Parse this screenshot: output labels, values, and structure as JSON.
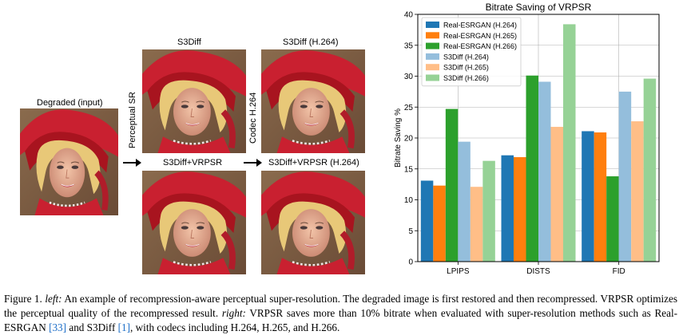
{
  "figure": {
    "left": {
      "degraded_label": "Degraded (input)",
      "s3diff_label": "S3Diff",
      "s3diff_h264_label": "S3Diff (H.264)",
      "perceptual_sr_label": "Perceptual SR",
      "codec_label": "Codec H.264",
      "s3diff_vrpsr_label": "S3Diff+VRPSR",
      "s3diff_vrpsr_h264_label": "S3Diff+VRPSR (H.264)"
    },
    "caption": {
      "prefix": "Figure 1.",
      "left_word": "left:",
      "text1": " An example of recompression-aware perceptual super-resolution. The degraded image is first restored and then recompressed. VRPSR optimizes the perceptual quality of the recompressed result. ",
      "right_word": "right:",
      "text2": " VRPSR saves more than 10% bitrate when evaluated with super-resolution methods such as Real-ESRGAN ",
      "ref1": "[33]",
      "text3": " and S3Diff ",
      "ref2": "[1]",
      "text4": ", with codecs including H.264, H.265, and H.266."
    }
  },
  "chart_data": {
    "type": "bar",
    "title": "Bitrate Saving of VRPSR",
    "xlabel": "",
    "ylabel": "Bitrate Saving %",
    "ylim": [
      0,
      40
    ],
    "yticks": [
      0,
      5,
      10,
      15,
      20,
      25,
      30,
      35,
      40
    ],
    "grid": true,
    "legend_position": "top-left",
    "categories": [
      "LPIPS",
      "DISTS",
      "FID"
    ],
    "series": [
      {
        "name": "Real-ESRGAN (H.264)",
        "color": "#1f77b4",
        "values": [
          13.1,
          17.2,
          21.1
        ]
      },
      {
        "name": "Real-ESRGAN (H.265)",
        "color": "#ff7f0e",
        "values": [
          12.3,
          16.9,
          20.9
        ]
      },
      {
        "name": "Real-ESRGAN (H.266)",
        "color": "#2ca02c",
        "values": [
          24.7,
          30.1,
          13.8
        ]
      },
      {
        "name": "S3Diff (H.264)",
        "color": "#94bedc",
        "values": [
          19.4,
          29.1,
          27.5
        ]
      },
      {
        "name": "S3Diff (H.265)",
        "color": "#ffbe87",
        "values": [
          12.1,
          21.8,
          22.7
        ]
      },
      {
        "name": "S3Diff (H.266)",
        "color": "#96d296",
        "values": [
          16.3,
          38.4,
          29.6
        ]
      }
    ]
  }
}
